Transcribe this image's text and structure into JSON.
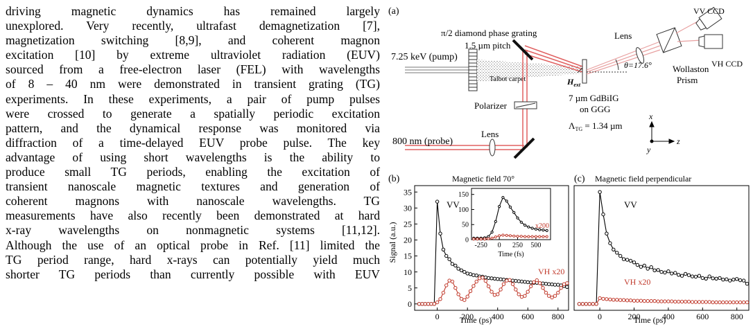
{
  "text_column": {
    "lines": [
      "driving magnetic dynamics has remained largely",
      "unexplored. Very recently, ultrafast demagnetization [7],",
      "magnetization switching [8,9], and coherent magnon",
      "excitation [10] by extreme ultraviolet radiation (EUV)",
      "sourced from a free-electron laser (FEL) with wavelengths",
      "of 8 – 40 nm were demonstrated in transient grating (TG)",
      "experiments. In these experiments, a pair of pump pulses",
      "were crossed to generate a spatially periodic excitation",
      "pattern, and the dynamical response was monitored via",
      "diffraction of a time-delayed EUV probe pulse. The key",
      "advantage of using short wavelengths is the ability to",
      "produce small TG periods, enabling the excitation of",
      "transient nanoscale magnetic textures and generation of",
      "coherent magnons with nanoscale wavelengths. TG",
      "measurements have also recently been demonstrated at hard",
      "x-ray wavelengths on nonmagnetic systems [11,12].",
      "Although the use of an optical probe in Ref. [11] limited the",
      "TG period range, hard x-rays can potentially yield much",
      "shorter TG periods than currently possible with EUV"
    ]
  },
  "figure": {
    "panel_a": {
      "label": "(a)",
      "grating_line1": "π/2 diamond phase grating",
      "grating_line2": "1.5 µm pitch",
      "pump": "7.25 keV (pump)",
      "talbot": "Talbot carpet",
      "polarizer": "Polarizer",
      "probe": "800 nm (probe)",
      "lens_probe": "Lens",
      "lens_top": "Lens",
      "vv_ccd": "VV CCD",
      "vh_ccd": "VH CCD",
      "wollaston1": "Wollaston",
      "wollaston2": "Prism",
      "theta": "θ=17.6°",
      "hext": "H",
      "hext_sub": "ext",
      "sample1": "7 µm GdBiIG",
      "sample2": "on GGG",
      "lambda": "Λ",
      "lambda_sub": "TG",
      "lambda_val": " = 1.34 µm",
      "axis_x": "x",
      "axis_y": "y",
      "axis_z": "z"
    },
    "panel_b": {
      "label": "(b)",
      "title": "Magnetic field 70°",
      "ylabel": "Signal (a.u.)",
      "xlabel": "Time (ps)",
      "vv_label": "VV",
      "vh_label": "VH x20",
      "inset_xlabel": "Time (fs)",
      "inset_x200": "x200"
    },
    "panel_c": {
      "label": "(c)",
      "title": "Magnetic field perpendicular",
      "xlabel": "Time (ps)",
      "vv_label": "VV",
      "vh_label": "VH x20"
    }
  },
  "colors": {
    "vv": "#000000",
    "vh": "#c0392b",
    "beam": "#e06060"
  },
  "chart_data": [
    {
      "type": "line",
      "title": "Magnetic field 70°",
      "xlabel": "Time (ps)",
      "ylabel": "Signal (a.u.)",
      "xlim": [
        -150,
        870
      ],
      "ylim": [
        -2,
        37
      ],
      "xticks": [
        0,
        200,
        400,
        600,
        800
      ],
      "yticks": [
        0,
        5,
        10,
        15,
        20,
        25,
        30,
        35
      ],
      "series": [
        {
          "name": "VV",
          "color": "#000000",
          "x": [
            -120,
            -100,
            -80,
            -60,
            -40,
            -20,
            0,
            20,
            40,
            60,
            80,
            100,
            120,
            140,
            160,
            180,
            200,
            220,
            240,
            260,
            280,
            300,
            320,
            340,
            360,
            380,
            400,
            420,
            440,
            460,
            480,
            500,
            520,
            540,
            560,
            580,
            600,
            620,
            640,
            660,
            680,
            700,
            720,
            740,
            760,
            780,
            800,
            820,
            840,
            860
          ],
          "y": [
            0,
            0,
            0,
            0,
            0,
            0,
            32,
            22,
            17,
            15,
            14,
            12.5,
            12,
            11,
            10.5,
            10,
            9.5,
            9.3,
            9,
            8.9,
            8.6,
            8.5,
            8.3,
            8.1,
            8,
            7.9,
            7.8,
            7.7,
            7.6,
            7.5,
            7.4,
            7.3,
            7.2,
            7.1,
            7,
            6.9,
            6.8,
            6.7,
            6.6,
            6.6,
            6.5,
            6.4,
            6.3,
            6.2,
            6.1,
            6,
            6,
            5.8,
            5.6,
            5.3
          ]
        },
        {
          "name": "VH x20",
          "color": "#c0392b",
          "x": [
            -120,
            -100,
            -80,
            -60,
            -40,
            -20,
            0,
            20,
            40,
            60,
            80,
            100,
            120,
            140,
            160,
            180,
            200,
            220,
            240,
            260,
            280,
            300,
            320,
            340,
            360,
            380,
            400,
            420,
            440,
            460,
            480,
            500,
            520,
            540,
            560,
            580,
            600,
            620,
            640,
            660,
            680,
            700,
            720,
            740,
            760,
            780,
            800,
            820,
            840,
            860
          ],
          "y": [
            0,
            0,
            0,
            0,
            0,
            0,
            0.5,
            1.5,
            3.5,
            5.8,
            7.3,
            7,
            5,
            3,
            1.6,
            1.2,
            2.3,
            4,
            5.6,
            7,
            8,
            8.2,
            7.2,
            5.5,
            3.8,
            2.8,
            3,
            4.5,
            6.2,
            7.3,
            7.5,
            6.2,
            4.5,
            3,
            2.2,
            2.5,
            3.8,
            5.5,
            6.8,
            7.4,
            6.5,
            5,
            3.5,
            2.5,
            2,
            2.5,
            3.5,
            5,
            6.2,
            6.5
          ]
        }
      ],
      "inset": {
        "xlabel": "Time (fs)",
        "xlim": [
          -380,
          700
        ],
        "ylim": [
          0,
          170
        ],
        "xticks": [
          -250,
          0,
          250,
          500
        ],
        "yticks": [
          0,
          50,
          100,
          150
        ],
        "series": [
          {
            "name": "VV",
            "color": "#000000",
            "x": [
              -350,
              -300,
              -250,
              -200,
              -150,
              -100,
              -50,
              0,
              50,
              100,
              150,
              200,
              250,
              300,
              350,
              400,
              450,
              500,
              550,
              600,
              650
            ],
            "y": [
              5,
              5,
              5,
              6,
              10,
              25,
              60,
              110,
              140,
              128,
              108,
              90,
              72,
              58,
              48,
              42,
              38,
              35,
              33,
              32,
              30
            ]
          },
          {
            "name": "x200",
            "color": "#c0392b",
            "x": [
              -350,
              -300,
              -250,
              -200,
              -150,
              -100,
              -50,
              0,
              50,
              100,
              150,
              200,
              250,
              300,
              350,
              400,
              450,
              500,
              550,
              600,
              650
            ],
            "y": [
              2,
              2,
              2,
              2,
              3,
              5,
              9,
              13,
              15,
              14,
              13,
              12,
              11,
              11,
              10,
              10,
              10,
              10,
              10,
              10,
              10
            ]
          }
        ]
      }
    },
    {
      "type": "line",
      "title": "Magnetic field perpendicular",
      "xlabel": "Time (ps)",
      "xlim": [
        -150,
        870
      ],
      "ylim": [
        -2,
        37
      ],
      "xticks": [
        0,
        200,
        400,
        600,
        800
      ],
      "series": [
        {
          "name": "VV",
          "color": "#000000",
          "x": [
            -120,
            -100,
            -80,
            -60,
            -40,
            -20,
            0,
            20,
            40,
            60,
            80,
            100,
            120,
            140,
            160,
            180,
            200,
            220,
            240,
            260,
            280,
            300,
            320,
            340,
            360,
            380,
            400,
            420,
            440,
            460,
            480,
            500,
            520,
            540,
            560,
            580,
            600,
            620,
            640,
            660,
            680,
            700,
            720,
            740,
            760,
            780,
            800,
            820,
            840,
            860
          ],
          "y": [
            0,
            0,
            0,
            0,
            0,
            0,
            35,
            28,
            22,
            19,
            17,
            16,
            15,
            14,
            13.8,
            13.5,
            13,
            12.2,
            11.6,
            12,
            11,
            11.5,
            10.5,
            10.6,
            10,
            9.8,
            10.2,
            9.5,
            9.7,
            9.1,
            8.8,
            9.4,
            9,
            8.6,
            8.5,
            8.8,
            8.1,
            7.9,
            8.6,
            8,
            7.9,
            8.1,
            7.6,
            7.7,
            7.3,
            7.6,
            7.8,
            7.4,
            7.3,
            6.3
          ]
        },
        {
          "name": "VH x20",
          "color": "#c0392b",
          "x": [
            -120,
            -100,
            -80,
            -60,
            -40,
            -20,
            0,
            20,
            40,
            60,
            80,
            100,
            120,
            140,
            160,
            180,
            200,
            220,
            240,
            260,
            280,
            300,
            320,
            340,
            360,
            380,
            400,
            420,
            440,
            460,
            480,
            500,
            520,
            540,
            560,
            580,
            600,
            620,
            640,
            660,
            680,
            700,
            720,
            740,
            760,
            780,
            800,
            820,
            840,
            860
          ],
          "y": [
            0,
            0,
            0,
            0,
            0,
            0,
            1.8,
            1.6,
            1.5,
            1.4,
            1.3,
            1.3,
            1.2,
            1.2,
            1.1,
            1.1,
            1,
            1,
            1,
            0.9,
            0.9,
            0.9,
            0.9,
            0.8,
            0.8,
            0.8,
            0.8,
            0.8,
            0.7,
            0.7,
            0.7,
            0.7,
            0.7,
            0.6,
            0.6,
            0.6,
            0.6,
            0.6,
            0.6,
            0.5,
            0.5,
            0.5,
            0.5,
            0.5,
            0.5,
            0.5,
            0.5,
            0.5,
            0.5,
            0.5
          ]
        }
      ]
    }
  ]
}
